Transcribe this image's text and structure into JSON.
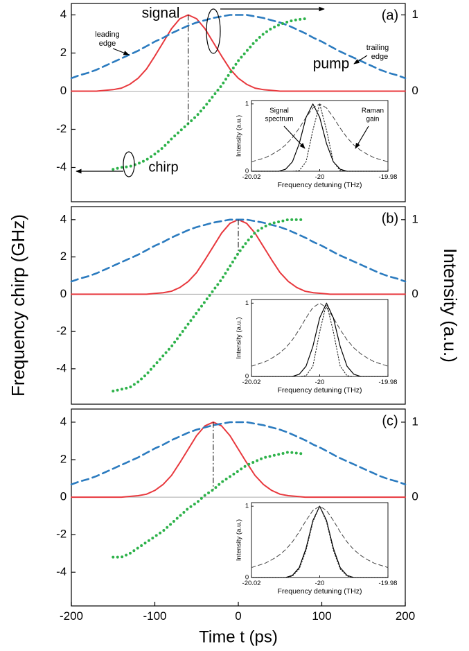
{
  "chart_data": [
    {
      "type": "line",
      "label": "(a)",
      "x": [
        -200,
        -190,
        -180,
        -170,
        -160,
        -150,
        -140,
        -130,
        -120,
        -110,
        -100,
        -90,
        -80,
        -70,
        -60,
        -50,
        -40,
        -30,
        -20,
        -10,
        0,
        10,
        20,
        30,
        40,
        50,
        60,
        70,
        80,
        90,
        100,
        110,
        120,
        130,
        140,
        150,
        160,
        170,
        180,
        190,
        200
      ],
      "xlim": [
        -200,
        200
      ],
      "ylim": [
        -5.8,
        4.6
      ],
      "yticks": [
        -4,
        -2,
        0,
        2,
        4
      ],
      "y2lim": [
        -1.45,
        1.15
      ],
      "y2ticks": [
        0,
        1
      ],
      "zero_line": true,
      "series": [
        {
          "color": "#e8383d",
          "style": "solid",
          "axis": "y2",
          "values": [
            0,
            0,
            0,
            0,
            0.01,
            0.02,
            0.04,
            0.09,
            0.17,
            0.29,
            0.46,
            0.64,
            0.82,
            0.95,
            1,
            0.95,
            0.82,
            0.64,
            0.46,
            0.29,
            0.17,
            0.09,
            0.04,
            0.02,
            0.01,
            0,
            0,
            0,
            0,
            0,
            0,
            0,
            0,
            0,
            0,
            0,
            0,
            0,
            0,
            0,
            0
          ]
        },
        {
          "color": "#2b7bbf",
          "style": "dashed",
          "axis": "y2",
          "values": [
            0.17,
            0.21,
            0.24,
            0.28,
            0.33,
            0.38,
            0.43,
            0.48,
            0.53,
            0.59,
            0.65,
            0.7,
            0.76,
            0.81,
            0.86,
            0.9,
            0.93,
            0.96,
            0.98,
            1,
            1,
            1,
            0.98,
            0.96,
            0.93,
            0.9,
            0.86,
            0.81,
            0.76,
            0.7,
            0.65,
            0.59,
            0.53,
            0.48,
            0.43,
            0.38,
            0.33,
            0.28,
            0.24,
            0.21,
            0.17
          ]
        },
        {
          "color": "#2db24a",
          "style": "dotted",
          "values": [
            null,
            null,
            null,
            null,
            null,
            -4.1,
            -4.0,
            -3.95,
            -3.8,
            -3.6,
            -3.3,
            -2.95,
            -2.5,
            -2.1,
            -1.7,
            -1.3,
            -0.8,
            -0.25,
            0.3,
            0.95,
            1.6,
            2.1,
            2.6,
            3.0,
            3.3,
            3.5,
            3.65,
            3.75,
            3.8,
            null,
            null,
            null,
            null,
            null,
            null,
            null,
            null,
            null,
            null,
            null,
            null
          ]
        }
      ],
      "annotations": [
        {
          "text": "signal",
          "color": "#e8383d"
        },
        {
          "text": "pump",
          "color": "#2b7bbf"
        },
        {
          "text": "chirp",
          "color": "#000000"
        },
        {
          "text": "leading",
          "color": "#000000"
        },
        {
          "text": "edge",
          "color": "#000000"
        },
        {
          "text": "trailing",
          "color": "#000000"
        },
        {
          "text": "edge",
          "color": "#000000"
        }
      ],
      "inset": {
        "type": "line",
        "x": [
          -20.02,
          -20.018,
          -20.016,
          -20.014,
          -20.012,
          -20.01,
          -20.008,
          -20.006,
          -20.004,
          -20.002,
          -20,
          -19.998,
          -19.996,
          -19.994,
          -19.992,
          -19.99,
          -19.988,
          -19.986,
          -19.984,
          -19.982,
          -19.98
        ],
        "xlim": [
          -20.02,
          -19.98
        ],
        "xticks": [
          -20.02,
          -20,
          -19.98
        ],
        "ylim": [
          0,
          1.05
        ],
        "yticks": [
          0,
          1
        ],
        "xlabel": "Frequency detuning (THz)",
        "ylabel": "Intensity (a.u.)",
        "series": [
          {
            "color": "#444444",
            "style": "dashed",
            "values": [
              0.14,
              0.17,
              0.2,
              0.25,
              0.31,
              0.39,
              0.5,
              0.64,
              0.8,
              0.94,
              1,
              0.94,
              0.8,
              0.64,
              0.5,
              0.39,
              0.31,
              0.25,
              0.2,
              0.17,
              0.14
            ]
          },
          {
            "color": "#000000",
            "style": "solid",
            "values": [
              0,
              0,
              0,
              0,
              0,
              0.03,
              0.14,
              0.41,
              0.8,
              1,
              0.8,
              0.41,
              0.14,
              0.03,
              0,
              0,
              0,
              0,
              0,
              0,
              0
            ]
          },
          {
            "color": "#222222",
            "style": "dotted",
            "values": [
              0,
              0,
              0,
              0,
              0,
              0,
              0,
              0.01,
              0.14,
              0.61,
              1,
              0.61,
              0.14,
              0.01,
              0,
              0,
              0,
              0,
              0,
              0,
              0
            ]
          }
        ],
        "annotations": [
          {
            "text": "Signal"
          },
          {
            "text": "spectrum"
          },
          {
            "text": "Raman"
          },
          {
            "text": "gain"
          }
        ]
      }
    },
    {
      "type": "line",
      "label": "(b)",
      "x": [
        -200,
        -190,
        -180,
        -170,
        -160,
        -150,
        -140,
        -130,
        -120,
        -110,
        -100,
        -90,
        -80,
        -70,
        -60,
        -50,
        -40,
        -30,
        -20,
        -10,
        0,
        10,
        20,
        30,
        40,
        50,
        60,
        70,
        80,
        90,
        100,
        110,
        120,
        130,
        140,
        150,
        160,
        170,
        180,
        190,
        200
      ],
      "xlim": [
        -200,
        200
      ],
      "ylim": [
        -5.9,
        4.7
      ],
      "yticks": [
        -4,
        -2,
        0,
        2,
        4
      ],
      "y2lim": [
        -1.475,
        1.175
      ],
      "y2ticks": [
        0,
        1
      ],
      "zero_line": true,
      "ylabel": "Frequency chirp (GHz)",
      "y2label": "Intensity (a.u.)",
      "series": [
        {
          "color": "#e8383d",
          "style": "solid",
          "axis": "y2",
          "values": [
            0,
            0,
            0,
            0,
            0,
            0,
            0,
            0,
            0,
            0,
            0.01,
            0.02,
            0.04,
            0.09,
            0.17,
            0.29,
            0.46,
            0.64,
            0.82,
            0.95,
            1,
            0.95,
            0.82,
            0.64,
            0.46,
            0.29,
            0.17,
            0.09,
            0.04,
            0.02,
            0.01,
            0,
            0,
            0,
            0,
            0,
            0,
            0,
            0,
            0,
            0
          ]
        },
        {
          "color": "#2b7bbf",
          "style": "dashed",
          "axis": "y2",
          "values": [
            0.17,
            0.21,
            0.24,
            0.28,
            0.33,
            0.38,
            0.43,
            0.48,
            0.53,
            0.59,
            0.65,
            0.7,
            0.76,
            0.81,
            0.86,
            0.9,
            0.93,
            0.96,
            0.98,
            1,
            1,
            1,
            0.98,
            0.96,
            0.93,
            0.9,
            0.86,
            0.81,
            0.76,
            0.7,
            0.65,
            0.59,
            0.53,
            0.48,
            0.43,
            0.38,
            0.33,
            0.28,
            0.24,
            0.21,
            0.17
          ]
        },
        {
          "color": "#2db24a",
          "style": "dotted",
          "values": [
            null,
            null,
            null,
            null,
            null,
            -5.2,
            -5.1,
            -5.0,
            -4.7,
            -4.3,
            -3.8,
            -3.3,
            -2.8,
            -2.2,
            -1.6,
            -1.0,
            -0.4,
            0.2,
            0.8,
            1.5,
            2.2,
            2.8,
            3.3,
            3.6,
            3.8,
            3.9,
            4.0,
            4.0,
            4.0,
            null,
            null,
            null,
            null,
            null,
            null,
            null,
            null,
            null,
            null,
            null,
            null
          ]
        }
      ],
      "inset": {
        "type": "line",
        "x": [
          -20.02,
          -20.018,
          -20.016,
          -20.014,
          -20.012,
          -20.01,
          -20.008,
          -20.006,
          -20.004,
          -20.002,
          -20,
          -19.998,
          -19.996,
          -19.994,
          -19.992,
          -19.99,
          -19.988,
          -19.986,
          -19.984,
          -19.982,
          -19.98
        ],
        "xlim": [
          -20.02,
          -19.98
        ],
        "xticks": [
          -20.02,
          -20,
          -19.98
        ],
        "ylim": [
          0,
          1.05
        ],
        "yticks": [
          0,
          1
        ],
        "xlabel": "Frequency detuning (THz)",
        "ylabel": "Intensity (a.u.)",
        "series": [
          {
            "color": "#444444",
            "style": "dashed",
            "values": [
              0.14,
              0.17,
              0.2,
              0.25,
              0.31,
              0.39,
              0.5,
              0.64,
              0.8,
              0.94,
              1,
              0.94,
              0.8,
              0.64,
              0.5,
              0.39,
              0.31,
              0.25,
              0.2,
              0.17,
              0.14
            ]
          },
          {
            "color": "#000000",
            "style": "solid",
            "values": [
              0,
              0,
              0,
              0,
              0,
              0,
              0,
              0.03,
              0.14,
              0.41,
              0.8,
              1,
              0.8,
              0.41,
              0.14,
              0.03,
              0,
              0,
              0,
              0,
              0
            ]
          },
          {
            "color": "#222222",
            "style": "dotted",
            "values": [
              0,
              0,
              0,
              0,
              0,
              0,
              0,
              0,
              0.01,
              0.14,
              0.61,
              1,
              0.61,
              0.14,
              0.01,
              0,
              0,
              0,
              0,
              0,
              0
            ]
          }
        ]
      }
    },
    {
      "type": "line",
      "label": "(c)",
      "x": [
        -200,
        -190,
        -180,
        -170,
        -160,
        -150,
        -140,
        -130,
        -120,
        -110,
        -100,
        -90,
        -80,
        -70,
        -60,
        -50,
        -40,
        -30,
        -20,
        -10,
        0,
        10,
        20,
        30,
        40,
        50,
        60,
        70,
        80,
        90,
        100,
        110,
        120,
        130,
        140,
        150,
        160,
        170,
        180,
        190,
        200
      ],
      "xlim": [
        -200,
        200
      ],
      "xticks": [
        -200,
        -100,
        0,
        100,
        200
      ],
      "xlabel": "Time t (ps)",
      "ylim": [
        -5.8,
        4.7
      ],
      "yticks": [
        -4,
        -2,
        0,
        2,
        4
      ],
      "y2lim": [
        -1.45,
        1.175
      ],
      "y2ticks": [
        0,
        1
      ],
      "zero_line": true,
      "series": [
        {
          "color": "#e8383d",
          "style": "solid",
          "axis": "y2",
          "values": [
            0,
            0,
            0,
            0,
            0,
            0,
            0,
            0.01,
            0.02,
            0.04,
            0.09,
            0.17,
            0.29,
            0.46,
            0.64,
            0.82,
            0.95,
            1,
            0.95,
            0.82,
            0.64,
            0.46,
            0.29,
            0.17,
            0.09,
            0.04,
            0.02,
            0.01,
            0,
            0,
            0,
            0,
            0,
            0,
            0,
            0,
            0,
            0,
            0,
            0,
            0
          ]
        },
        {
          "color": "#2b7bbf",
          "style": "dashed",
          "axis": "y2",
          "values": [
            0.17,
            0.21,
            0.24,
            0.28,
            0.33,
            0.38,
            0.43,
            0.48,
            0.53,
            0.59,
            0.65,
            0.7,
            0.76,
            0.81,
            0.86,
            0.9,
            0.93,
            0.96,
            0.98,
            1,
            1,
            1,
            0.98,
            0.96,
            0.93,
            0.9,
            0.86,
            0.81,
            0.76,
            0.7,
            0.65,
            0.59,
            0.53,
            0.48,
            0.43,
            0.38,
            0.33,
            0.28,
            0.24,
            0.21,
            0.17
          ]
        },
        {
          "color": "#2db24a",
          "style": "dotted",
          "values": [
            null,
            null,
            null,
            null,
            null,
            -3.2,
            -3.2,
            -3.0,
            -2.7,
            -2.4,
            -2.1,
            -1.8,
            -1.4,
            -1.0,
            -0.6,
            -0.3,
            0.1,
            0.4,
            0.8,
            1.1,
            1.4,
            1.7,
            1.9,
            2.1,
            2.2,
            2.3,
            2.4,
            2.35,
            2.3,
            null,
            null,
            null,
            null,
            null,
            null,
            null,
            null,
            null,
            null,
            null,
            null
          ]
        }
      ],
      "inset": {
        "type": "line",
        "x": [
          -20.02,
          -20.018,
          -20.016,
          -20.014,
          -20.012,
          -20.01,
          -20.008,
          -20.006,
          -20.004,
          -20.002,
          -20,
          -19.998,
          -19.996,
          -19.994,
          -19.992,
          -19.99,
          -19.988,
          -19.986,
          -19.984,
          -19.982,
          -19.98
        ],
        "xlim": [
          -20.02,
          -19.98
        ],
        "xticks": [
          -20.02,
          -20,
          -19.98
        ],
        "ylim": [
          0,
          1.05
        ],
        "yticks": [
          0,
          1
        ],
        "xlabel": "Frequency detuning (THz)",
        "ylabel": "Intensity (a.u.)",
        "series": [
          {
            "color": "#444444",
            "style": "dashed",
            "values": [
              0.14,
              0.17,
              0.2,
              0.25,
              0.31,
              0.39,
              0.5,
              0.64,
              0.8,
              0.94,
              1,
              0.94,
              0.8,
              0.64,
              0.5,
              0.39,
              0.31,
              0.25,
              0.2,
              0.17,
              0.14
            ]
          },
          {
            "color": "#000000",
            "style": "solid",
            "values": [
              0,
              0,
              0,
              0,
              0,
              0,
              0.03,
              0.14,
              0.41,
              0.8,
              1,
              0.8,
              0.41,
              0.14,
              0.03,
              0,
              0,
              0,
              0,
              0,
              0
            ]
          },
          {
            "color": "#222222",
            "style": "dotted",
            "values": [
              0,
              0,
              0,
              0,
              0,
              0,
              0.02,
              0.12,
              0.38,
              0.78,
              1,
              0.78,
              0.38,
              0.12,
              0.02,
              0,
              0,
              0,
              0,
              0,
              0
            ]
          }
        ]
      }
    }
  ]
}
